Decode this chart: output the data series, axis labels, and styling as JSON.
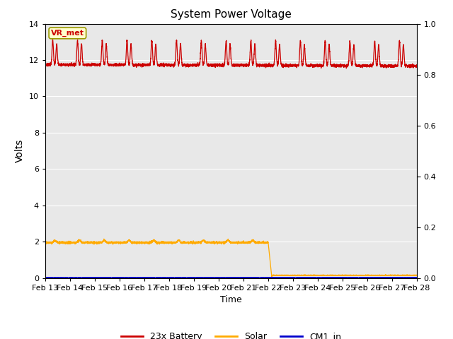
{
  "title": "System Power Voltage",
  "xlabel": "Time",
  "ylabel": "Volts",
  "background_color": "#e8e8e8",
  "figure_bg": "#ffffff",
  "n_days": 15,
  "ylim_left": [
    0,
    14
  ],
  "ylim_right": [
    0.0,
    1.0
  ],
  "yticks_left": [
    0,
    2,
    4,
    6,
    8,
    10,
    12,
    14
  ],
  "yticks_right": [
    0.0,
    0.2,
    0.4,
    0.6,
    0.8,
    1.0
  ],
  "x_labels": [
    "Feb 13",
    "Feb 14",
    "Feb 15",
    "Feb 16",
    "Feb 17",
    "Feb 18",
    "Feb 19",
    "Feb 20",
    "Feb 21",
    "Feb 22",
    "Feb 23",
    "Feb 24",
    "Feb 25",
    "Feb 26",
    "Feb 27",
    "Feb 28"
  ],
  "battery_color": "#cc0000",
  "solar_color": "#ffaa00",
  "cm1_color": "#0000cc",
  "annotation_text": "VR_met",
  "annotation_bg": "#ffffcc",
  "annotation_border": "#999900",
  "solar_drop_day": 9.0,
  "solar_drop_duration": 0.15,
  "solar_after_drop": 0.15,
  "battery_base": 11.75,
  "battery_peak": 1.35,
  "legend_labels": [
    "23x Battery",
    "Solar",
    "CM1_in"
  ]
}
